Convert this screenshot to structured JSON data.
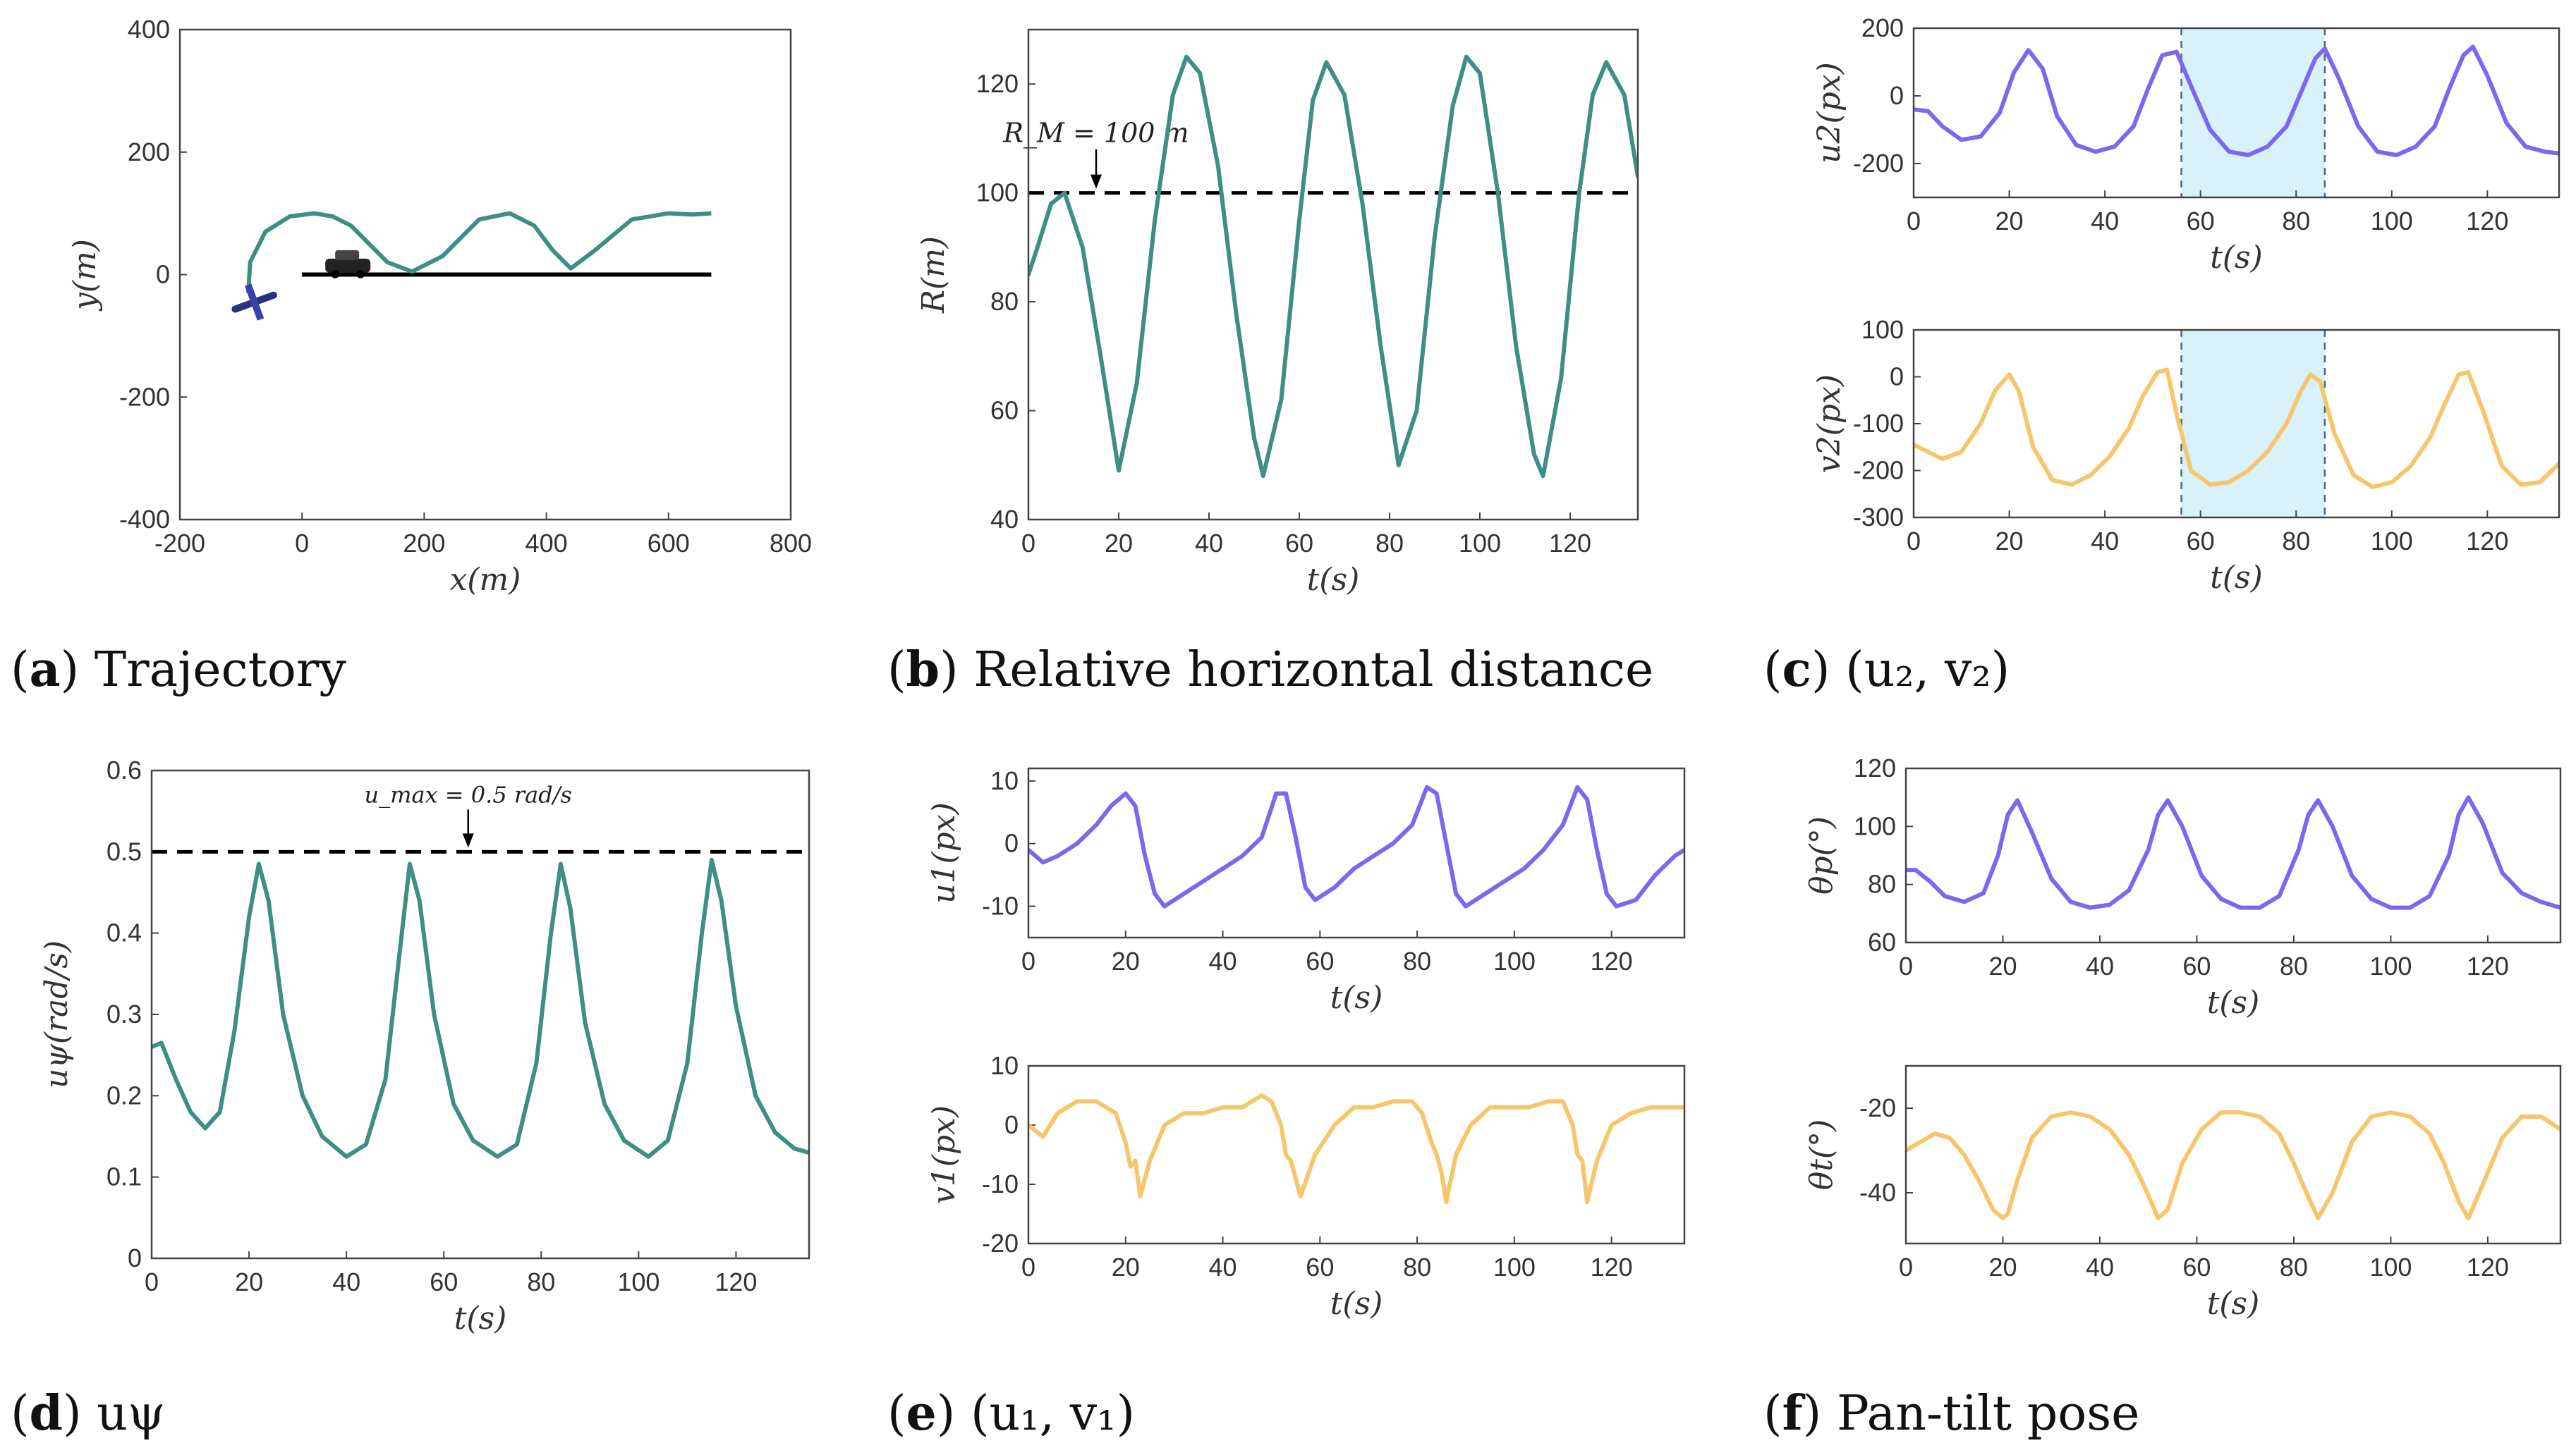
{
  "colors": {
    "teal": "#3d8f85",
    "purple": "#7b68ee",
    "yellow": "#f7c56a",
    "shade": "#d8f1fa"
  },
  "captions": [
    {
      "letter": "a",
      "open": "(",
      "close": ")",
      "text": "Trajectory"
    },
    {
      "letter": "b",
      "open": "(",
      "close": ")",
      "text": "Relative horizontal distance"
    },
    {
      "letter": "c",
      "open": "(",
      "close": ")",
      "text": "(u₂, v₂)"
    },
    {
      "letter": "d",
      "open": "(",
      "close": ")",
      "text": "uψ"
    },
    {
      "letter": "e",
      "open": "(",
      "close": ")",
      "text": "(u₁, v₁)"
    },
    {
      "letter": "f",
      "open": "(",
      "close": ")",
      "text": "Pan-tilt pose"
    }
  ],
  "chart_data": [
    {
      "id": "a",
      "type": "line",
      "xlabel": "x(m)",
      "ylabel": "y(m)",
      "xlim": [
        -200,
        800
      ],
      "ylim": [
        -400,
        400
      ],
      "xticks": [
        -200,
        0,
        200,
        400,
        600,
        800
      ],
      "yticks": [
        -400,
        -200,
        0,
        200,
        400
      ],
      "target_path": {
        "x": [
          0,
          670
        ],
        "y": [
          0,
          0
        ]
      },
      "trajectory": {
        "x": [
          -88,
          -85,
          -60,
          -20,
          20,
          50,
          80,
          110,
          140,
          180,
          230,
          290,
          340,
          380,
          410,
          440,
          480,
          540,
          600,
          640,
          670
        ],
        "y": [
          -30,
          20,
          70,
          95,
          100,
          95,
          80,
          50,
          20,
          5,
          30,
          90,
          100,
          80,
          40,
          10,
          40,
          90,
          100,
          98,
          100
        ]
      },
      "icons": [
        "aircraft-icon",
        "vehicle-icon"
      ]
    },
    {
      "id": "b",
      "type": "line",
      "xlabel": "t(s)",
      "ylabel": "R(m)",
      "xlim": [
        0,
        135
      ],
      "ylim": [
        40,
        130
      ],
      "xticks": [
        0,
        20,
        40,
        60,
        80,
        100,
        120
      ],
      "yticks": [
        40,
        60,
        80,
        100,
        120
      ],
      "threshold": {
        "value": 100,
        "label": "R_M = 100 m"
      },
      "x": [
        0,
        2,
        5,
        8,
        12,
        16,
        20,
        24,
        28,
        32,
        35,
        38,
        42,
        46,
        50,
        52,
        56,
        60,
        63,
        66,
        70,
        74,
        78,
        82,
        86,
        90,
        94,
        97,
        100,
        104,
        108,
        112,
        114,
        118,
        122,
        125,
        128,
        132,
        135
      ],
      "y": [
        85,
        90,
        98,
        100,
        90,
        70,
        49,
        65,
        95,
        118,
        125,
        122,
        105,
        78,
        55,
        48,
        62,
        95,
        117,
        124,
        118,
        98,
        72,
        50,
        60,
        92,
        116,
        125,
        122,
        100,
        72,
        52,
        48,
        66,
        100,
        118,
        124,
        118,
        103
      ]
    },
    {
      "id": "c-top",
      "type": "line",
      "xlabel": "t(s)",
      "ylabel": "u2(px)",
      "xlim": [
        0,
        135
      ],
      "ylim": [
        -300,
        200
      ],
      "xticks": [
        0,
        20,
        40,
        60,
        80,
        100,
        120
      ],
      "yticks": [
        -200,
        0,
        200
      ],
      "shaded": [
        56,
        86
      ],
      "x": [
        0,
        3,
        6,
        10,
        14,
        18,
        21,
        24,
        27,
        30,
        34,
        38,
        42,
        46,
        49,
        52,
        55,
        58,
        62,
        66,
        70,
        74,
        78,
        81,
        84,
        86,
        89,
        93,
        97,
        101,
        105,
        109,
        112,
        115,
        117,
        120,
        124,
        128,
        132,
        135
      ],
      "y": [
        -40,
        -45,
        -90,
        -130,
        -120,
        -50,
        70,
        135,
        80,
        -60,
        -145,
        -165,
        -150,
        -90,
        20,
        120,
        130,
        30,
        -100,
        -165,
        -175,
        -150,
        -90,
        10,
        110,
        140,
        50,
        -90,
        -165,
        -175,
        -150,
        -90,
        20,
        120,
        145,
        60,
        -80,
        -150,
        -165,
        -170
      ]
    },
    {
      "id": "c-bottom",
      "type": "line",
      "xlabel": "t(s)",
      "ylabel": "v2(px)",
      "xlim": [
        0,
        135
      ],
      "ylim": [
        -300,
        100
      ],
      "xticks": [
        0,
        20,
        40,
        60,
        80,
        100,
        120
      ],
      "yticks": [
        -300,
        -200,
        -100,
        0,
        100
      ],
      "shaded": [
        56,
        86
      ],
      "x": [
        0,
        3,
        6,
        10,
        14,
        17,
        20,
        22,
        25,
        29,
        33,
        37,
        41,
        45,
        48,
        51,
        53,
        55,
        58,
        62,
        66,
        70,
        74,
        78,
        81,
        83,
        85,
        88,
        92,
        96,
        100,
        104,
        108,
        111,
        114,
        116,
        119,
        123,
        127,
        131,
        135
      ],
      "y": [
        -145,
        -160,
        -175,
        -160,
        -100,
        -30,
        5,
        -30,
        -150,
        -220,
        -230,
        -210,
        -170,
        -110,
        -40,
        10,
        15,
        -80,
        -200,
        -230,
        -225,
        -200,
        -160,
        -100,
        -30,
        5,
        -10,
        -120,
        -210,
        -235,
        -225,
        -190,
        -130,
        -60,
        5,
        10,
        -70,
        -190,
        -230,
        -225,
        -185
      ]
    },
    {
      "id": "d",
      "type": "line",
      "xlabel": "t(s)",
      "ylabel": "uψ(rad/s)",
      "xlim": [
        0,
        135
      ],
      "ylim": [
        0,
        0.6
      ],
      "xticks": [
        0,
        20,
        40,
        60,
        80,
        100,
        120
      ],
      "yticks": [
        0,
        0.1,
        0.2,
        0.3,
        0.4,
        0.5,
        0.6
      ],
      "threshold": {
        "value": 0.5,
        "label": "u_max = 0.5 rad/s"
      },
      "x": [
        0,
        2,
        5,
        8,
        11,
        14,
        17,
        20,
        22,
        24,
        27,
        31,
        35,
        40,
        44,
        48,
        51,
        53,
        55,
        58,
        62,
        66,
        71,
        75,
        79,
        82,
        84,
        86,
        89,
        93,
        97,
        102,
        106,
        110,
        113,
        115,
        117,
        120,
        124,
        128,
        132,
        135
      ],
      "y": [
        0.26,
        0.265,
        0.22,
        0.18,
        0.16,
        0.18,
        0.28,
        0.42,
        0.485,
        0.44,
        0.3,
        0.2,
        0.15,
        0.125,
        0.14,
        0.22,
        0.38,
        0.485,
        0.44,
        0.3,
        0.19,
        0.145,
        0.125,
        0.14,
        0.24,
        0.4,
        0.485,
        0.43,
        0.29,
        0.19,
        0.145,
        0.125,
        0.145,
        0.24,
        0.4,
        0.49,
        0.44,
        0.31,
        0.2,
        0.155,
        0.135,
        0.13
      ]
    },
    {
      "id": "e-top",
      "type": "line",
      "xlabel": "t(s)",
      "ylabel": "u1(px)",
      "xlim": [
        0,
        135
      ],
      "ylim": [
        -15,
        12
      ],
      "xticks": [
        0,
        20,
        40,
        60,
        80,
        100,
        120
      ],
      "yticks": [
        -10,
        0,
        10
      ],
      "x": [
        0,
        3,
        6,
        10,
        14,
        17,
        20,
        22,
        24,
        26,
        28,
        32,
        36,
        40,
        44,
        48,
        51,
        53,
        55,
        57,
        59,
        63,
        67,
        71,
        75,
        79,
        82,
        84,
        86,
        88,
        90,
        94,
        98,
        102,
        106,
        110,
        113,
        115,
        117,
        119,
        121,
        125,
        129,
        133,
        135
      ],
      "y": [
        -1,
        -3,
        -2,
        0,
        3,
        6,
        8,
        6,
        -2,
        -8,
        -10,
        -8,
        -6,
        -4,
        -2,
        1,
        8,
        8,
        1,
        -7,
        -9,
        -7,
        -4,
        -2,
        0,
        3,
        9,
        8,
        0,
        -8,
        -10,
        -8,
        -6,
        -4,
        -1,
        3,
        9,
        7,
        -1,
        -8,
        -10,
        -9,
        -5,
        -2,
        -1
      ]
    },
    {
      "id": "e-bottom",
      "type": "line",
      "xlabel": "t(s)",
      "ylabel": "v1(px)",
      "xlim": [
        0,
        135
      ],
      "ylim": [
        -20,
        10
      ],
      "xticks": [
        0,
        20,
        40,
        60,
        80,
        100,
        120
      ],
      "yticks": [
        -20,
        -10,
        0,
        10
      ],
      "x": [
        0,
        3,
        6,
        10,
        14,
        18,
        20,
        21,
        22,
        23,
        25,
        28,
        32,
        36,
        40,
        44,
        48,
        50,
        52,
        53,
        54,
        56,
        59,
        63,
        67,
        71,
        75,
        79,
        81,
        83,
        84,
        85,
        86,
        88,
        91,
        95,
        99,
        103,
        107,
        110,
        112,
        113,
        114,
        115,
        117,
        120,
        124,
        128,
        132,
        135
      ],
      "y": [
        0,
        -2,
        2,
        4,
        4,
        2,
        -3,
        -7,
        -6,
        -12,
        -6,
        0,
        2,
        2,
        3,
        3,
        5,
        4,
        0,
        -5,
        -6,
        -12,
        -5,
        0,
        3,
        3,
        4,
        4,
        2,
        -3,
        -5,
        -8,
        -13,
        -5,
        0,
        3,
        3,
        3,
        4,
        4,
        0,
        -5,
        -6,
        -13,
        -6,
        0,
        2,
        3,
        3,
        3
      ]
    },
    {
      "id": "f-top",
      "type": "line",
      "xlabel": "t(s)",
      "ylabel": "θp(°)",
      "xlim": [
        0,
        135
      ],
      "ylim": [
        60,
        120
      ],
      "xticks": [
        0,
        20,
        40,
        60,
        80,
        100,
        120
      ],
      "yticks": [
        60,
        80,
        100,
        120
      ],
      "x": [
        0,
        2,
        5,
        8,
        12,
        16,
        19,
        21,
        23,
        26,
        30,
        34,
        38,
        42,
        46,
        50,
        52,
        54,
        57,
        61,
        65,
        69,
        73,
        77,
        81,
        83,
        85,
        88,
        92,
        96,
        100,
        104,
        108,
        112,
        114,
        116,
        119,
        123,
        127,
        131,
        135
      ],
      "y": [
        85,
        85,
        81,
        76,
        74,
        77,
        90,
        104,
        109,
        98,
        82,
        74,
        72,
        73,
        78,
        92,
        104,
        109,
        100,
        83,
        75,
        72,
        72,
        76,
        92,
        104,
        109,
        100,
        83,
        75,
        72,
        72,
        76,
        90,
        104,
        110,
        101,
        84,
        77,
        74,
        72
      ]
    },
    {
      "id": "f-bottom",
      "type": "line",
      "xlabel": "t(s)",
      "ylabel": "θt(°)",
      "xlim": [
        0,
        135
      ],
      "ylim": [
        -52,
        -10
      ],
      "xticks": [
        0,
        20,
        40,
        60,
        80,
        100,
        120
      ],
      "yticks": [
        -40,
        -20
      ],
      "x": [
        0,
        3,
        6,
        9,
        12,
        15,
        18,
        20,
        21,
        23,
        26,
        30,
        34,
        38,
        42,
        46,
        49,
        52,
        54,
        57,
        61,
        65,
        69,
        73,
        77,
        80,
        83,
        85,
        88,
        92,
        96,
        100,
        104,
        108,
        111,
        114,
        116,
        119,
        123,
        127,
        131,
        135
      ],
      "y": [
        -30,
        -28,
        -26,
        -27,
        -31,
        -37,
        -44,
        -46,
        -45,
        -37,
        -27,
        -22,
        -21,
        -22,
        -25,
        -31,
        -38,
        -46,
        -44,
        -33,
        -25,
        -21,
        -21,
        -22,
        -26,
        -33,
        -41,
        -46,
        -40,
        -28,
        -22,
        -21,
        -22,
        -26,
        -33,
        -42,
        -46,
        -38,
        -27,
        -22,
        -22,
        -25
      ]
    }
  ]
}
